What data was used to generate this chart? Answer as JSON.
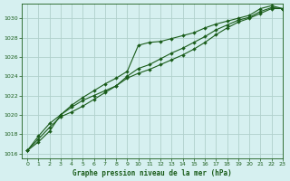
{
  "title": "Graphe pression niveau de la mer (hPa)",
  "bg_color": "#d6f0f0",
  "line_color": "#1a5c1a",
  "grid_color": "#b0d0cc",
  "xlim": [
    -0.5,
    23
  ],
  "ylim": [
    1015.5,
    1031.5
  ],
  "yticks": [
    1016,
    1018,
    1020,
    1022,
    1024,
    1026,
    1028,
    1030
  ],
  "xticks": [
    0,
    1,
    2,
    3,
    4,
    5,
    6,
    7,
    8,
    9,
    10,
    11,
    12,
    13,
    14,
    15,
    16,
    17,
    18,
    19,
    20,
    21,
    22,
    23
  ],
  "series": [
    [
      1016.3,
      1017.8,
      1019.1,
      1020.0,
      1021.0,
      1021.8,
      1022.5,
      1023.2,
      1023.8,
      1024.5,
      1027.2,
      1027.5,
      1027.6,
      1027.9,
      1028.2,
      1028.5,
      1029.0,
      1029.4,
      1029.7,
      1030.0,
      1030.3,
      1031.0,
      1031.3,
      1031.0
    ],
    [
      1016.3,
      1017.5,
      1018.7,
      1019.8,
      1020.3,
      1020.9,
      1021.6,
      1022.3,
      1023.0,
      1024.0,
      1024.8,
      1025.2,
      1025.8,
      1026.4,
      1026.9,
      1027.5,
      1028.1,
      1028.8,
      1029.3,
      1029.8,
      1030.1,
      1030.7,
      1031.1,
      1031.0
    ],
    [
      1016.3,
      1017.2,
      1018.3,
      1020.0,
      1020.8,
      1021.5,
      1022.0,
      1022.5,
      1023.0,
      1023.8,
      1024.3,
      1024.7,
      1025.2,
      1025.7,
      1026.2,
      1026.8,
      1027.5,
      1028.3,
      1029.0,
      1029.6,
      1030.0,
      1030.5,
      1031.0,
      1031.0
    ]
  ]
}
